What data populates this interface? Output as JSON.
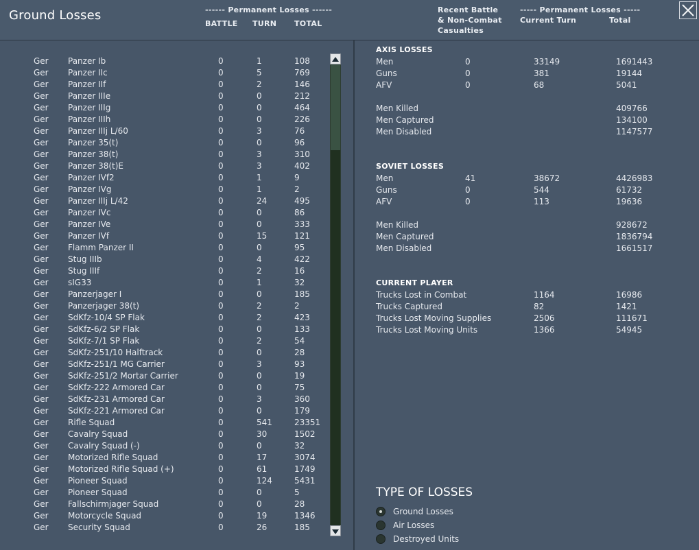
{
  "header": {
    "title": "Ground Losses",
    "left_group": "------ Permanent Losses ------",
    "col_battle": "BATTLE",
    "col_turn": "TURN",
    "col_total": "TOTAL",
    "recent_line1": "Recent Battle",
    "recent_line2": "& Non-Combat",
    "recent_line3": "Casualties",
    "right_group": "----- Permanent Losses -----",
    "col_current_turn": "Current Turn",
    "col_total_right": "Total",
    "close_icon": "close-icon"
  },
  "units": [
    [
      "Ger",
      "Panzer Ib",
      "0",
      "1",
      "108"
    ],
    [
      "Ger",
      "Panzer IIc",
      "0",
      "5",
      "769"
    ],
    [
      "Ger",
      "Panzer IIf",
      "0",
      "2",
      "146"
    ],
    [
      "Ger",
      "Panzer IIIe",
      "0",
      "0",
      "212"
    ],
    [
      "Ger",
      "Panzer IIIg",
      "0",
      "0",
      "464"
    ],
    [
      "Ger",
      "Panzer IIIh",
      "0",
      "0",
      "226"
    ],
    [
      "Ger",
      "Panzer IIIj L/60",
      "0",
      "3",
      "76"
    ],
    [
      "Ger",
      "Panzer 35(t)",
      "0",
      "0",
      "96"
    ],
    [
      "Ger",
      "Panzer 38(t)",
      "0",
      "3",
      "310"
    ],
    [
      "Ger",
      "Panzer 38(t)E",
      "0",
      "3",
      "402"
    ],
    [
      "Ger",
      "Panzer IVf2",
      "0",
      "1",
      "9"
    ],
    [
      "Ger",
      "Panzer IVg",
      "0",
      "1",
      "2"
    ],
    [
      "Ger",
      "Panzer IIIj L/42",
      "0",
      "24",
      "495"
    ],
    [
      "Ger",
      "Panzer IVc",
      "0",
      "0",
      "86"
    ],
    [
      "Ger",
      "Panzer IVe",
      "0",
      "0",
      "333"
    ],
    [
      "Ger",
      "Panzer IVf",
      "0",
      "15",
      "121"
    ],
    [
      "Ger",
      "Flamm Panzer II",
      "0",
      "0",
      "95"
    ],
    [
      "Ger",
      "Stug IIIb",
      "0",
      "4",
      "422"
    ],
    [
      "Ger",
      "Stug IIIf",
      "0",
      "2",
      "16"
    ],
    [
      "Ger",
      "sIG33",
      "0",
      "1",
      "32"
    ],
    [
      "Ger",
      "Panzerjager I",
      "0",
      "0",
      "185"
    ],
    [
      "Ger",
      "Panzerjager 38(t)",
      "0",
      "2",
      "2"
    ],
    [
      "Ger",
      "SdKfz-10/4 SP Flak",
      "0",
      "2",
      "423"
    ],
    [
      "Ger",
      "SdKfz-6/2 SP Flak",
      "0",
      "0",
      "133"
    ],
    [
      "Ger",
      "SdKfz-7/1 SP Flak",
      "0",
      "2",
      "54"
    ],
    [
      "Ger",
      "SdKfz-251/10 Halftrack",
      "0",
      "0",
      "28"
    ],
    [
      "Ger",
      "SdKfz-251/1 MG Carrier",
      "0",
      "3",
      "93"
    ],
    [
      "Ger",
      "SdKfz-251/2 Mortar Carrier",
      "0",
      "0",
      "19"
    ],
    [
      "Ger",
      "SdKfz-222 Armored Car",
      "0",
      "0",
      "75"
    ],
    [
      "Ger",
      "SdKfz-231 Armored Car",
      "0",
      "3",
      "360"
    ],
    [
      "Ger",
      "SdKfz-221 Armored Car",
      "0",
      "0",
      "179"
    ],
    [
      "Ger",
      "Rifle Squad",
      "0",
      "541",
      "23351"
    ],
    [
      "Ger",
      "Cavalry Squad",
      "0",
      "30",
      "1502"
    ],
    [
      "Ger",
      "Cavalry Squad (-)",
      "0",
      "0",
      "32"
    ],
    [
      "Ger",
      "Motorized Rifle Squad",
      "0",
      "17",
      "3074"
    ],
    [
      "Ger",
      "Motorized Rifle Squad (+)",
      "0",
      "61",
      "1749"
    ],
    [
      "Ger",
      "Pioneer Squad",
      "0",
      "124",
      "5431"
    ],
    [
      "Ger",
      "Pioneer Squad",
      "0",
      "0",
      "5"
    ],
    [
      "Ger",
      "Fallschirmjager Squad",
      "0",
      "0",
      "28"
    ],
    [
      "Ger",
      "Motorcycle Squad",
      "0",
      "19",
      "1346"
    ],
    [
      "Ger",
      "Security Squad",
      "0",
      "26",
      "185"
    ]
  ],
  "axis": {
    "title": "AXIS LOSSES",
    "rows": [
      [
        "Men",
        "0",
        "33149",
        "1691443"
      ],
      [
        "Guns",
        "0",
        "381",
        "19144"
      ],
      [
        "AFV",
        "0",
        "68",
        "5041"
      ]
    ],
    "detail": [
      [
        "Men Killed",
        "409766"
      ],
      [
        "Men Captured",
        "134100"
      ],
      [
        "Men Disabled",
        "1147577"
      ]
    ]
  },
  "soviet": {
    "title": "SOVIET LOSSES",
    "rows": [
      [
        "Men",
        "41",
        "38672",
        "4426983"
      ],
      [
        "Guns",
        "0",
        "544",
        "61732"
      ],
      [
        "AFV",
        "0",
        "113",
        "19636"
      ]
    ],
    "detail": [
      [
        "Men Killed",
        "928672"
      ],
      [
        "Men Captured",
        "1836794"
      ],
      [
        "Men Disabled",
        "1661517"
      ]
    ]
  },
  "player": {
    "title": "CURRENT PLAYER",
    "rows": [
      [
        "Trucks Lost in Combat",
        "1164",
        "16986"
      ],
      [
        "Trucks Captured",
        "82",
        "1421"
      ],
      [
        "Trucks Lost Moving Supplies",
        "2506",
        "111671"
      ],
      [
        "Trucks Lost Moving Units",
        "1366",
        "54945"
      ]
    ]
  },
  "type_of_losses": {
    "title": "TYPE OF LOSSES",
    "options": [
      "Ground Losses",
      "Air Losses",
      "Destroyed Units"
    ],
    "selected": "Ground Losses"
  },
  "colors": {
    "background": "#465566",
    "scrollbar": "#203020",
    "text": "#e6e9ee"
  }
}
